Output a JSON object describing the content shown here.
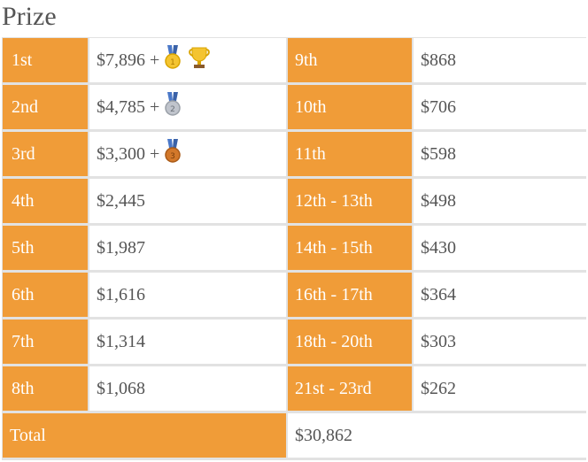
{
  "title": "Prize",
  "left_rows": [
    {
      "place": "1st",
      "amount": "$7,896",
      "medal": "gold-medal-icon",
      "trophy": "trophy-icon"
    },
    {
      "place": "2nd",
      "amount": "$4,785",
      "medal": "silver-medal-icon"
    },
    {
      "place": "3rd",
      "amount": "$3,300",
      "medal": "bronze-medal-icon"
    },
    {
      "place": "4th",
      "amount": "$2,445"
    },
    {
      "place": "5th",
      "amount": "$1,987"
    },
    {
      "place": "6th",
      "amount": "$1,616"
    },
    {
      "place": "7th",
      "amount": "$1,314"
    },
    {
      "place": "8th",
      "amount": "$1,068"
    }
  ],
  "right_rows": [
    {
      "place": "9th",
      "amount": "$868"
    },
    {
      "place": "10th",
      "amount": "$706"
    },
    {
      "place": "11th",
      "amount": "$598"
    },
    {
      "place": "12th - 13th",
      "amount": "$498"
    },
    {
      "place": "14th - 15th",
      "amount": "$430"
    },
    {
      "place": "16th - 17th",
      "amount": "$364"
    },
    {
      "place": "18th - 20th",
      "amount": "$303"
    },
    {
      "place": "21st - 23rd",
      "amount": "$262"
    }
  ],
  "plus_sign": "+",
  "total": {
    "label": "Total",
    "amount": "$30,862"
  },
  "colors": {
    "accent": "#f09c38",
    "text": "#555555",
    "border": "#e2e2e2",
    "gold": "#f4c430",
    "silver": "#c0c4cc",
    "bronze": "#d2782a",
    "ribbon": "#4a78c8"
  }
}
